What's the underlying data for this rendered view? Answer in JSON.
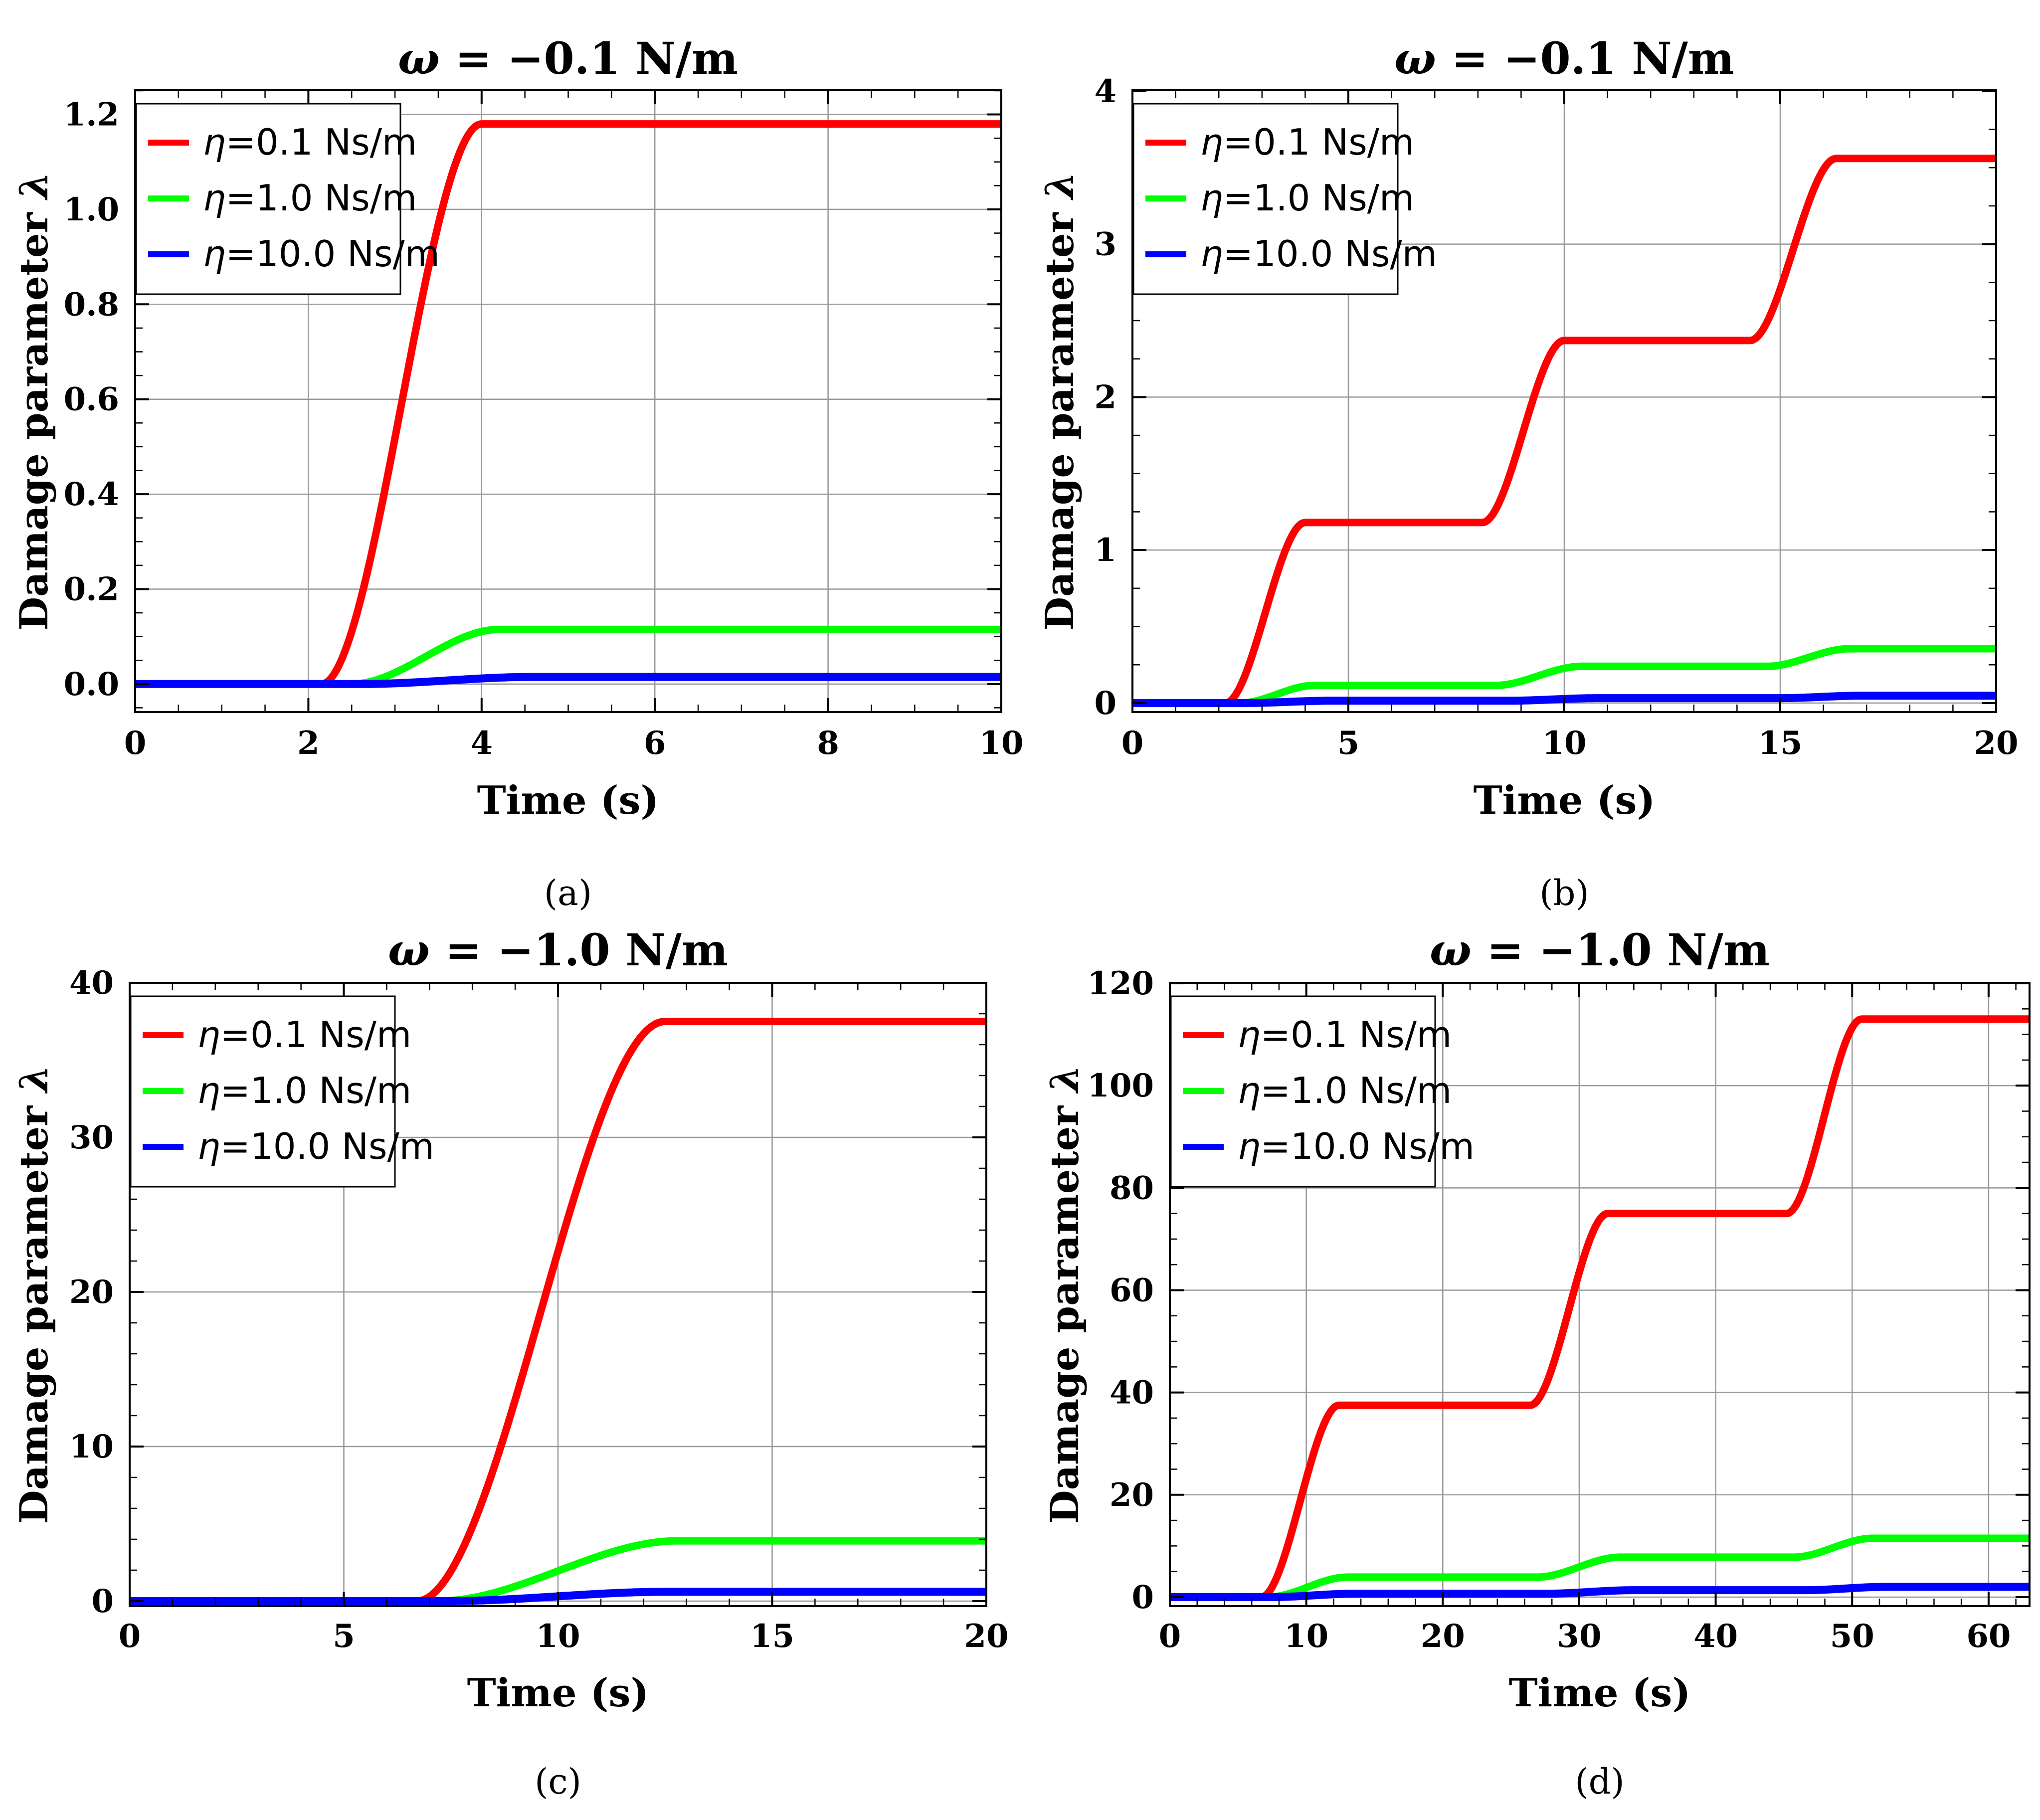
{
  "figure": {
    "background": "#FFFFFF",
    "frame_color": "#000000",
    "grid_color": "#999999"
  },
  "axis_labels": {
    "x": "Time (s)",
    "y_text": "Damage parameter ",
    "y_sym": "λ"
  },
  "legend": {
    "entries": [
      {
        "sym": "η",
        "rest": "=0.1 Ns/m",
        "color": "#FF0000"
      },
      {
        "sym": "η",
        "rest": "=1.0 Ns/m",
        "color": "#00FF00"
      },
      {
        "sym": "η",
        "rest": "=10.0 Ns/m",
        "color": "#0000FF"
      }
    ]
  },
  "chart_data": [
    {
      "id": "a",
      "type": "line",
      "title_sym": "ω",
      "title_rest": " = −0.1 N/m",
      "caption": "(a)",
      "xlim": [
        0,
        10
      ],
      "ylim": [
        -0.059,
        1.251
      ],
      "xticks": [
        0,
        2,
        4,
        6,
        8,
        10
      ],
      "xtick_labels": [
        "0",
        "2",
        "4",
        "6",
        "8",
        "10"
      ],
      "yticks": [
        0,
        0.2,
        0.4,
        0.6,
        0.8,
        1.0,
        1.2
      ],
      "ytick_labels": [
        "0.0",
        "0.2",
        "0.4",
        "0.6",
        "0.8",
        "1.0",
        "1.2"
      ],
      "minor_x": 0.5,
      "minor_y": 0.05,
      "grid": true,
      "legend_position": "upper-left",
      "series": [
        {
          "name": "η=0.1 Ns/m",
          "color": "#FF0000",
          "width": 15,
          "points": [
            [
              0,
              0
            ],
            [
              2.15,
              0
            ],
            [
              4.0,
              1.18
            ],
            [
              10,
              1.18
            ]
          ]
        },
        {
          "name": "η=1.0 Ns/m",
          "color": "#00FF00",
          "width": 15,
          "points": [
            [
              0,
              0
            ],
            [
              2.5,
              0
            ],
            [
              4.2,
              0.115
            ],
            [
              10,
              0.115
            ]
          ]
        },
        {
          "name": "η=10.0 Ns/m",
          "color": "#0000FF",
          "width": 16,
          "points": [
            [
              0,
              0
            ],
            [
              2.6,
              0
            ],
            [
              4.6,
              0.015
            ],
            [
              10,
              0.015
            ]
          ]
        }
      ]
    },
    {
      "id": "b",
      "type": "line",
      "title_sym": "ω",
      "title_rest": " = −0.1 N/m",
      "caption": "(b)",
      "xlim": [
        0,
        20
      ],
      "ylim": [
        -0.059,
        4.006
      ],
      "xticks": [
        0,
        5,
        10,
        15,
        20
      ],
      "xtick_labels": [
        "0",
        "5",
        "10",
        "15",
        "20"
      ],
      "yticks": [
        0,
        1,
        2,
        3,
        4
      ],
      "ytick_labels": [
        "0",
        "1",
        "2",
        "3",
        "4"
      ],
      "minor_x": 1,
      "minor_y": 0.25,
      "grid": true,
      "legend_position": "upper-left",
      "series": [
        {
          "name": "η=0.1 Ns/m",
          "color": "#FF0000",
          "width": 15,
          "points": [
            [
              0,
              0
            ],
            [
              2.15,
              0
            ],
            [
              4.0,
              1.18
            ],
            [
              8.1,
              1.18
            ],
            [
              10.0,
              2.37
            ],
            [
              14.3,
              2.37
            ],
            [
              16.3,
              3.56
            ],
            [
              20,
              3.56
            ]
          ]
        },
        {
          "name": "η=1.0 Ns/m",
          "color": "#00FF00",
          "width": 15,
          "points": [
            [
              0,
              0
            ],
            [
              2.5,
              0
            ],
            [
              4.2,
              0.115
            ],
            [
              8.4,
              0.115
            ],
            [
              10.4,
              0.24
            ],
            [
              14.7,
              0.24
            ],
            [
              16.6,
              0.355
            ],
            [
              20,
              0.355
            ]
          ]
        },
        {
          "name": "η=10.0 Ns/m",
          "color": "#0000FF",
          "width": 16,
          "points": [
            [
              0,
              0
            ],
            [
              2.6,
              0
            ],
            [
              4.6,
              0.015
            ],
            [
              8.7,
              0.015
            ],
            [
              10.8,
              0.032
            ],
            [
              15.0,
              0.032
            ],
            [
              16.9,
              0.048
            ],
            [
              20,
              0.048
            ]
          ]
        }
      ]
    },
    {
      "id": "c",
      "type": "line",
      "title_sym": "ω",
      "title_rest": " = −1.0 N/m",
      "caption": "(c)",
      "xlim": [
        0,
        20
      ],
      "ylim": [
        -0.323,
        40.0
      ],
      "xticks": [
        0,
        5,
        10,
        15,
        20
      ],
      "xtick_labels": [
        "0",
        "5",
        "10",
        "15",
        "20"
      ],
      "yticks": [
        0,
        10,
        20,
        30,
        40
      ],
      "ytick_labels": [
        "0",
        "10",
        "20",
        "30",
        "40"
      ],
      "minor_x": 1,
      "minor_y": 2,
      "grid": true,
      "legend_position": "upper-left",
      "series": [
        {
          "name": "η=0.1 Ns/m",
          "color": "#FF0000",
          "width": 15,
          "points": [
            [
              0,
              0
            ],
            [
              6.7,
              0
            ],
            [
              12.5,
              37.5
            ],
            [
              20,
              37.5
            ]
          ]
        },
        {
          "name": "η=1.0 Ns/m",
          "color": "#00FF00",
          "width": 15,
          "points": [
            [
              0,
              0
            ],
            [
              7.2,
              0
            ],
            [
              12.8,
              3.9
            ],
            [
              20,
              3.9
            ]
          ]
        },
        {
          "name": "η=10.0 Ns/m",
          "color": "#0000FF",
          "width": 16,
          "points": [
            [
              0,
              0
            ],
            [
              7.4,
              0
            ],
            [
              12.5,
              0.6
            ],
            [
              20,
              0.6
            ]
          ]
        }
      ]
    },
    {
      "id": "d",
      "type": "line",
      "title_sym": "ω",
      "title_rest": " = −1.0 N/m",
      "caption": "(d)",
      "xlim": [
        0,
        63
      ],
      "ylim": [
        -1.76,
        120.1
      ],
      "xticks": [
        0,
        10,
        20,
        30,
        40,
        50,
        60
      ],
      "xtick_labels": [
        "0",
        "10",
        "20",
        "30",
        "40",
        "50",
        "60"
      ],
      "yticks": [
        0,
        20,
        40,
        60,
        80,
        100,
        120
      ],
      "ytick_labels": [
        "0",
        "20",
        "40",
        "60",
        "80",
        "100",
        "120"
      ],
      "minor_x": 2,
      "minor_y": 5,
      "grid": true,
      "legend_position": "upper-left",
      "series": [
        {
          "name": "η=0.1 Ns/m",
          "color": "#FF0000",
          "width": 15,
          "points": [
            [
              0,
              0
            ],
            [
              6.7,
              0
            ],
            [
              12.4,
              37.5
            ],
            [
              26.4,
              37.5
            ],
            [
              32.1,
              75
            ],
            [
              45.2,
              75
            ],
            [
              50.7,
              113
            ],
            [
              63,
              113
            ]
          ]
        },
        {
          "name": "η=1.0 Ns/m",
          "color": "#00FF00",
          "width": 15,
          "points": [
            [
              0,
              0
            ],
            [
              7.2,
              0
            ],
            [
              13.0,
              3.9
            ],
            [
              26.9,
              3.9
            ],
            [
              33.0,
              7.8
            ],
            [
              45.7,
              7.8
            ],
            [
              51.5,
              11.5
            ],
            [
              63,
              11.5
            ]
          ]
        },
        {
          "name": "η=10.0 Ns/m",
          "color": "#0000FF",
          "width": 16,
          "points": [
            [
              0,
              0
            ],
            [
              7.4,
              0
            ],
            [
              13.5,
              0.65
            ],
            [
              27.5,
              0.65
            ],
            [
              34.0,
              1.35
            ],
            [
              46.5,
              1.35
            ],
            [
              52.5,
              2.0
            ],
            [
              63,
              2.0
            ]
          ]
        }
      ]
    }
  ]
}
